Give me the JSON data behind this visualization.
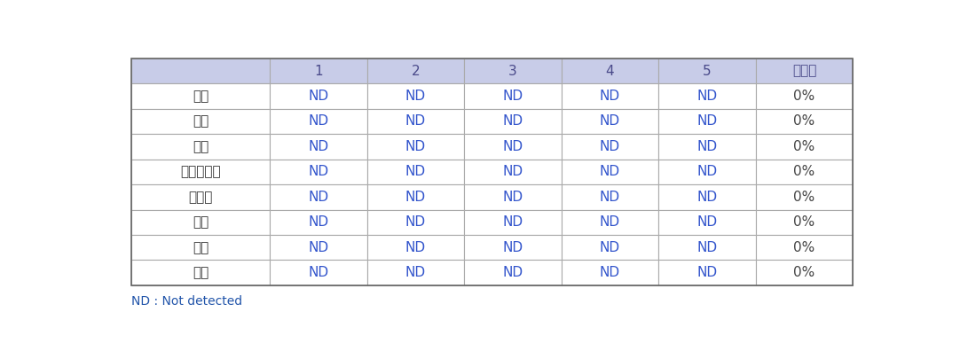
{
  "col_headers": [
    "",
    "1",
    "2",
    "3",
    "4",
    "5",
    "검출률"
  ],
  "rows": [
    [
      "고추",
      "ND",
      "ND",
      "ND",
      "ND",
      "ND",
      "0%"
    ],
    [
      "대파",
      "ND",
      "ND",
      "ND",
      "ND",
      "ND",
      "0%"
    ],
    [
      "마늘",
      "ND",
      "ND",
      "ND",
      "ND",
      "ND",
      "0%"
    ],
    [
      "방웸토마토",
      "ND",
      "ND",
      "ND",
      "ND",
      "ND",
      "0%"
    ],
    [
      "양상추",
      "ND",
      "ND",
      "ND",
      "ND",
      "ND",
      "0%"
    ],
    [
      "오이",
      "ND",
      "ND",
      "ND",
      "ND",
      "ND",
      "0%"
    ],
    [
      "새우",
      "ND",
      "ND",
      "ND",
      "ND",
      "ND",
      "0%"
    ],
    [
      "어묵",
      "ND",
      "ND",
      "ND",
      "ND",
      "ND",
      "0%"
    ]
  ],
  "header_bg": "#c8cce8",
  "header_text_color": "#4a4a8a",
  "row_bg": "#ffffff",
  "nd_color": "#3355cc",
  "pct_color": "#444444",
  "row_label_color": "#333333",
  "grid_color": "#aaaaaa",
  "note": "ND : Not detected",
  "note_color": "#2255aa",
  "figsize": [
    10.82,
    3.96
  ],
  "dpi": 100
}
